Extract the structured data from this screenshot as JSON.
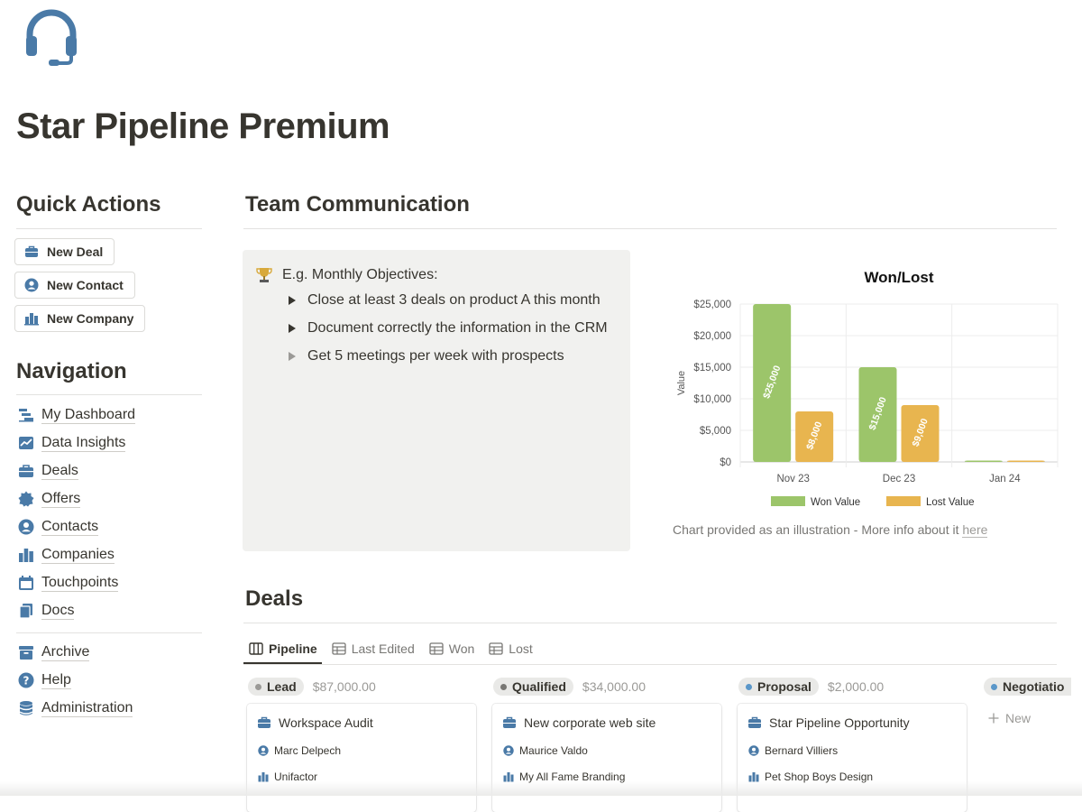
{
  "page": {
    "title": "Star Pipeline Premium"
  },
  "colors": {
    "icon_blue": "#4a7aa7",
    "won": "#9cc56a",
    "lost": "#e8b54f",
    "text": "#37352f"
  },
  "quick_actions": {
    "heading": "Quick Actions",
    "buttons": [
      {
        "label": "New Deal",
        "icon": "briefcase-icon"
      },
      {
        "label": "New Contact",
        "icon": "user-circle-icon"
      },
      {
        "label": "New Company",
        "icon": "building-icon"
      }
    ]
  },
  "navigation": {
    "heading": "Navigation",
    "items": [
      {
        "label": "My Dashboard",
        "icon": "dashboard-icon"
      },
      {
        "label": "Data Insights",
        "icon": "line-chart-icon"
      },
      {
        "label": "Deals",
        "icon": "briefcase-icon"
      },
      {
        "label": "Offers",
        "icon": "badge-icon"
      },
      {
        "label": "Contacts",
        "icon": "user-circle-icon"
      },
      {
        "label": "Companies",
        "icon": "building-icon"
      },
      {
        "label": "Touchpoints",
        "icon": "calendar-icon"
      },
      {
        "label": "Docs",
        "icon": "documents-icon"
      }
    ],
    "secondary_items": [
      {
        "label": "Archive",
        "icon": "archive-icon"
      },
      {
        "label": "Help",
        "icon": "help-icon"
      },
      {
        "label": "Administration",
        "icon": "database-icon"
      }
    ]
  },
  "team_communication": {
    "heading": "Team Communication",
    "callout": {
      "title": "E.g. Monthly Objectives:",
      "icon": "trophy-icon",
      "items": [
        "Close at least 3 deals on product A this month",
        "Document correctly the information in the CRM",
        "Get 5 meetings per week with prospects"
      ]
    },
    "chart_caption": "Chart provided as an illustration - More info about it ",
    "chart_link": "here"
  },
  "chart_data": {
    "type": "bar",
    "title": "Won/Lost",
    "xlabel": "",
    "ylabel": "Value",
    "categories": [
      "Nov 23",
      "Dec 23",
      "Jan 24"
    ],
    "series": [
      {
        "name": "Won Value",
        "values": [
          25000,
          15000,
          0
        ],
        "labels": [
          "$25,000",
          "$15,000",
          ""
        ]
      },
      {
        "name": "Lost Value",
        "values": [
          8000,
          9000,
          0
        ],
        "labels": [
          "$8,000",
          "$9,000",
          ""
        ]
      }
    ],
    "ylim": [
      0,
      25000
    ],
    "yticks": [
      0,
      5000,
      10000,
      15000,
      20000,
      25000
    ],
    "ytick_labels": [
      "$0",
      "$5,000",
      "$10,000",
      "$15,000",
      "$20,000",
      "$25,000"
    ],
    "grid": true,
    "legend": "bottom"
  },
  "deals": {
    "heading": "Deals",
    "tabs": [
      {
        "label": "Pipeline",
        "icon": "board-icon",
        "active": true
      },
      {
        "label": "Last Edited",
        "icon": "table-icon"
      },
      {
        "label": "Won",
        "icon": "table-icon"
      },
      {
        "label": "Lost",
        "icon": "table-icon"
      }
    ],
    "columns": [
      {
        "status": "Lead",
        "dot": "#9b9a97",
        "total": "$87,000.00",
        "card": {
          "title": "Workspace Audit",
          "contact": "Marc Delpech",
          "company": "Unifactor"
        }
      },
      {
        "status": "Qualified",
        "dot": "#787774",
        "total": "$34,000.00",
        "card": {
          "title": "New corporate web site",
          "contact": "Maurice Valdo",
          "company": "My All Fame Branding"
        }
      },
      {
        "status": "Proposal",
        "dot": "#5b97c9",
        "total": "$2,000.00",
        "card": {
          "title": "Star Pipeline Opportunity",
          "contact": "Bernard Villiers",
          "company": "Pet Shop Boys Design"
        }
      },
      {
        "status": "Negotiatio",
        "dot": "#5b97c9",
        "total": ""
      }
    ],
    "new_label": "New"
  }
}
